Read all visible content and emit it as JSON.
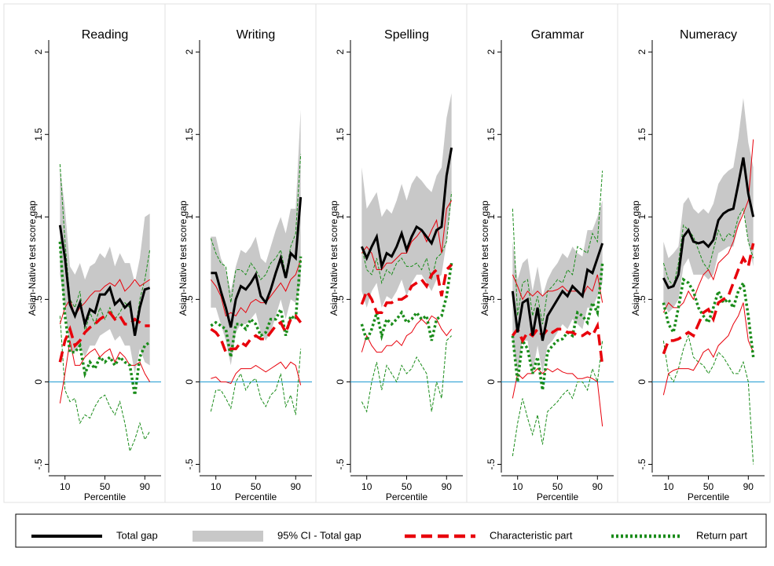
{
  "legend": [
    {
      "name": "Total gap",
      "color": "#000000",
      "width": 3,
      "dash": "none"
    },
    {
      "name": "95% CI - Total gap",
      "color": "#c8c8c8",
      "width": 0,
      "dash": "none"
    },
    {
      "name": "Characteristic part",
      "color": "#e8000b",
      "width": 3.5,
      "dash": "14 7"
    },
    {
      "name": "Return part",
      "color": "#1a8c1a",
      "width": 3.5,
      "dash": "3 3"
    }
  ],
  "chart_data": [
    {
      "type": "line",
      "title": "Reading",
      "ylabel": "Asian-Native test score gap",
      "xlabel": "Percentile",
      "x": [
        5,
        10,
        15,
        20,
        25,
        30,
        35,
        40,
        45,
        50,
        55,
        60,
        65,
        70,
        75,
        80,
        85,
        90,
        95
      ],
      "xlim": [
        0,
        100
      ],
      "xticks": [
        10,
        50,
        90
      ],
      "ylim": [
        -0.55,
        2.12
      ],
      "yticks": [
        {
          "value": -0.5,
          "label": "-.5"
        },
        0,
        {
          "value": 0.5,
          "label": ".5"
        },
        1,
        1.5,
        2
      ],
      "refline": 0,
      "total": {
        "values": [
          0.95,
          0.75,
          0.47,
          0.4,
          0.48,
          0.35,
          0.44,
          0.42,
          0.53,
          0.53,
          0.57,
          0.47,
          0.5,
          0.45,
          0.48,
          0.28,
          0.45,
          0.56,
          0.57
        ],
        "lower": [
          0.65,
          0.45,
          0.2,
          0.18,
          0.22,
          0.15,
          0.22,
          0.22,
          0.28,
          0.3,
          0.32,
          0.25,
          0.28,
          0.22,
          0.22,
          0.05,
          0.2,
          0.12,
          0.1
        ],
        "upper": [
          1.3,
          1.05,
          0.7,
          0.65,
          0.72,
          0.62,
          0.7,
          0.72,
          0.78,
          0.75,
          0.82,
          0.7,
          0.78,
          0.72,
          0.72,
          0.6,
          0.75,
          1.0,
          1.02
        ]
      },
      "characteristic": {
        "values": [
          0.12,
          0.25,
          0.32,
          0.22,
          0.25,
          0.3,
          0.33,
          0.35,
          0.38,
          0.4,
          0.42,
          0.38,
          0.4,
          0.35,
          0.35,
          0.38,
          0.36,
          0.34,
          0.34
        ],
        "lower": [
          -0.13,
          0.05,
          0.25,
          0.1,
          0.1,
          0.15,
          0.18,
          0.2,
          0.15,
          0.18,
          0.2,
          0.12,
          0.18,
          0.15,
          0.1,
          0.1,
          0.12,
          0.05,
          0.0
        ],
        "upper": [
          0.35,
          0.45,
          0.5,
          0.4,
          0.45,
          0.48,
          0.52,
          0.55,
          0.55,
          0.58,
          0.6,
          0.58,
          0.62,
          0.55,
          0.58,
          0.62,
          0.58,
          0.6,
          0.62
        ]
      },
      "return": {
        "values": [
          0.85,
          0.4,
          0.18,
          0.18,
          0.22,
          0.05,
          0.12,
          0.08,
          0.15,
          0.12,
          0.15,
          0.1,
          0.15,
          0.12,
          0.1,
          -0.08,
          0.15,
          0.22,
          0.24
        ],
        "lower": [
          0.4,
          -0.05,
          -0.12,
          -0.1,
          -0.25,
          -0.2,
          -0.22,
          -0.15,
          -0.1,
          -0.08,
          -0.15,
          -0.2,
          -0.12,
          -0.25,
          -0.42,
          -0.35,
          -0.25,
          -0.35,
          -0.3
        ],
        "upper": [
          1.32,
          0.85,
          0.5,
          0.45,
          0.55,
          0.3,
          0.42,
          0.35,
          0.45,
          0.38,
          0.45,
          0.38,
          0.42,
          0.48,
          0.45,
          0.3,
          0.5,
          0.62,
          0.8
        ]
      }
    },
    {
      "type": "line",
      "title": "Writing",
      "ylabel": "Asian-Native test score gap",
      "xlabel": "Percentile",
      "x": [
        5,
        10,
        15,
        20,
        25,
        30,
        35,
        40,
        45,
        50,
        55,
        60,
        65,
        70,
        75,
        80,
        85,
        90,
        95
      ],
      "xlim": [
        0,
        100
      ],
      "xticks": [
        10,
        50,
        90
      ],
      "ylim": [
        -0.55,
        2.12
      ],
      "yticks": [
        {
          "value": -0.5,
          "label": "-.5"
        },
        0,
        {
          "value": 0.5,
          "label": ".5"
        },
        1,
        1.5,
        2
      ],
      "refline": 0,
      "total": {
        "values": [
          0.66,
          0.66,
          0.55,
          0.45,
          0.33,
          0.5,
          0.58,
          0.56,
          0.6,
          0.65,
          0.52,
          0.48,
          0.56,
          0.66,
          0.75,
          0.63,
          0.78,
          0.75,
          1.12
        ],
        "lower": [
          0.45,
          0.45,
          0.35,
          0.25,
          0.1,
          0.3,
          0.35,
          0.35,
          0.38,
          0.42,
          0.3,
          0.25,
          0.3,
          0.4,
          0.5,
          0.38,
          0.5,
          0.48,
          0.6
        ],
        "upper": [
          0.88,
          0.88,
          0.75,
          0.68,
          0.55,
          0.7,
          0.8,
          0.78,
          0.82,
          0.88,
          0.75,
          0.72,
          0.82,
          0.92,
          1.0,
          0.9,
          1.05,
          1.05,
          1.65
        ]
      },
      "characteristic": {
        "values": [
          0.32,
          0.3,
          0.26,
          0.18,
          0.2,
          0.2,
          0.24,
          0.22,
          0.26,
          0.28,
          0.26,
          0.26,
          0.3,
          0.34,
          0.36,
          0.3,
          0.38,
          0.4,
          0.36
        ],
        "lower": [
          0.02,
          0.03,
          0.0,
          0.0,
          -0.01,
          0.05,
          0.08,
          0.08,
          0.08,
          0.1,
          0.08,
          0.06,
          0.08,
          0.1,
          0.12,
          0.08,
          0.12,
          0.1,
          -0.02
        ],
        "upper": [
          0.62,
          0.58,
          0.52,
          0.4,
          0.42,
          0.4,
          0.45,
          0.42,
          0.48,
          0.5,
          0.48,
          0.48,
          0.52,
          0.56,
          0.6,
          0.55,
          0.62,
          0.65,
          0.74
        ]
      },
      "return": {
        "values": [
          0.34,
          0.36,
          0.34,
          0.32,
          0.15,
          0.35,
          0.35,
          0.32,
          0.38,
          0.35,
          0.28,
          0.3,
          0.38,
          0.38,
          0.44,
          0.28,
          0.4,
          0.38,
          0.76
        ],
        "lower": [
          -0.18,
          -0.05,
          -0.05,
          -0.1,
          -0.16,
          0.0,
          0.05,
          -0.05,
          0.0,
          0.02,
          -0.1,
          -0.15,
          -0.08,
          -0.05,
          0.05,
          -0.15,
          -0.08,
          -0.2,
          0.2
        ],
        "upper": [
          0.87,
          0.78,
          0.72,
          0.7,
          0.48,
          0.68,
          0.68,
          0.65,
          0.72,
          0.68,
          0.62,
          0.65,
          0.72,
          0.75,
          0.8,
          0.65,
          0.82,
          0.9,
          1.38
        ]
      }
    },
    {
      "type": "line",
      "title": "Spelling",
      "ylabel": "Asian-Native test score gap",
      "xlabel": "Percentile",
      "x": [
        5,
        10,
        15,
        20,
        25,
        30,
        35,
        40,
        45,
        50,
        55,
        60,
        65,
        70,
        75,
        80,
        85,
        90,
        95
      ],
      "xlim": [
        0,
        100
      ],
      "xticks": [
        10,
        50,
        90
      ],
      "ylim": [
        -0.55,
        2.12
      ],
      "yticks": [
        {
          "value": -0.5,
          "label": "-.5"
        },
        0,
        {
          "value": 0.5,
          "label": ".5"
        },
        1,
        1.5,
        2
      ],
      "refline": 0,
      "total": {
        "values": [
          0.82,
          0.75,
          0.82,
          0.88,
          0.7,
          0.78,
          0.76,
          0.82,
          0.9,
          0.8,
          0.88,
          0.94,
          0.92,
          0.88,
          0.84,
          0.92,
          0.94,
          1.25,
          1.42
        ],
        "lower": [
          0.55,
          0.45,
          0.55,
          0.6,
          0.45,
          0.52,
          0.5,
          0.55,
          0.62,
          0.52,
          0.6,
          0.65,
          0.65,
          0.6,
          0.55,
          0.62,
          0.65,
          0.85,
          1.1
        ],
        "upper": [
          1.3,
          1.05,
          1.1,
          1.15,
          1.0,
          1.05,
          1.02,
          1.1,
          1.2,
          1.1,
          1.2,
          1.25,
          1.22,
          1.18,
          1.15,
          1.25,
          1.3,
          1.6,
          1.75
        ]
      },
      "characteristic": {
        "values": [
          0.47,
          0.55,
          0.5,
          0.42,
          0.42,
          0.48,
          0.48,
          0.5,
          0.5,
          0.52,
          0.58,
          0.6,
          0.62,
          0.58,
          0.65,
          0.68,
          0.52,
          0.68,
          0.71
        ],
        "lower": [
          0.18,
          0.28,
          0.22,
          0.18,
          0.18,
          0.22,
          0.22,
          0.25,
          0.22,
          0.28,
          0.3,
          0.35,
          0.38,
          0.35,
          0.4,
          0.38,
          0.32,
          0.28,
          0.32
        ],
        "upper": [
          0.78,
          0.82,
          0.78,
          0.68,
          0.68,
          0.72,
          0.72,
          0.75,
          0.78,
          0.78,
          0.85,
          0.88,
          0.92,
          0.85,
          0.92,
          0.98,
          0.78,
          1.05,
          1.1
        ]
      },
      "return": {
        "values": [
          0.35,
          0.25,
          0.32,
          0.42,
          0.28,
          0.38,
          0.35,
          0.38,
          0.42,
          0.36,
          0.38,
          0.42,
          0.38,
          0.4,
          0.25,
          0.38,
          0.4,
          0.52,
          0.72
        ],
        "lower": [
          -0.12,
          -0.18,
          0.0,
          0.12,
          -0.05,
          0.1,
          0.05,
          0.0,
          0.1,
          0.05,
          0.08,
          0.15,
          0.1,
          0.05,
          -0.18,
          0.0,
          -0.1,
          0.25,
          0.28
        ],
        "upper": [
          0.82,
          0.68,
          0.65,
          0.75,
          0.6,
          0.68,
          0.65,
          0.72,
          0.75,
          0.7,
          0.7,
          0.72,
          0.68,
          0.75,
          0.62,
          0.75,
          0.78,
          0.85,
          1.15
        ]
      }
    },
    {
      "type": "line",
      "title": "Grammar",
      "ylabel": "Asian-Native test score gap",
      "xlabel": "Percentile",
      "x": [
        5,
        10,
        15,
        20,
        25,
        30,
        35,
        40,
        45,
        50,
        55,
        60,
        65,
        70,
        75,
        80,
        85,
        90,
        95
      ],
      "xlim": [
        0,
        100
      ],
      "xticks": [
        10,
        50,
        90
      ],
      "ylim": [
        -0.55,
        2.12
      ],
      "yticks": [
        {
          "value": -0.5,
          "label": "-.5"
        },
        0,
        {
          "value": 0.5,
          "label": ".5"
        },
        1,
        1.5,
        2
      ],
      "refline": 0,
      "total": {
        "values": [
          0.55,
          0.3,
          0.48,
          0.5,
          0.28,
          0.45,
          0.25,
          0.4,
          0.45,
          0.5,
          0.55,
          0.52,
          0.58,
          0.55,
          0.52,
          0.68,
          0.66,
          0.75,
          0.84
        ],
        "lower": [
          0.25,
          0.05,
          0.25,
          0.25,
          0.05,
          0.22,
          0.05,
          0.22,
          0.25,
          0.3,
          0.35,
          0.32,
          0.38,
          0.35,
          0.32,
          0.45,
          0.45,
          0.52,
          0.6
        ],
        "upper": [
          0.85,
          0.62,
          0.72,
          0.75,
          0.55,
          0.7,
          0.52,
          0.62,
          0.68,
          0.72,
          0.78,
          0.75,
          0.82,
          0.78,
          0.76,
          0.92,
          0.92,
          1.0,
          1.1
        ]
      },
      "characteristic": {
        "values": [
          0.28,
          0.32,
          0.25,
          0.3,
          0.28,
          0.32,
          0.28,
          0.32,
          0.3,
          0.32,
          0.32,
          0.3,
          0.3,
          0.28,
          0.28,
          0.3,
          0.28,
          0.34,
          0.1
        ],
        "lower": [
          -0.1,
          0.05,
          0.02,
          0.05,
          0.05,
          0.08,
          0.05,
          0.08,
          0.06,
          0.08,
          0.06,
          0.05,
          0.05,
          0.02,
          0.02,
          0.03,
          0.02,
          0.0,
          -0.27
        ],
        "upper": [
          0.65,
          0.58,
          0.5,
          0.55,
          0.52,
          0.55,
          0.52,
          0.55,
          0.55,
          0.56,
          0.58,
          0.55,
          0.55,
          0.55,
          0.52,
          0.58,
          0.55,
          0.65,
          0.48
        ]
      },
      "return": {
        "values": [
          0.28,
          0.0,
          0.25,
          0.2,
          0.05,
          0.15,
          -0.05,
          0.18,
          0.22,
          0.25,
          0.26,
          0.3,
          0.28,
          0.42,
          0.4,
          0.36,
          0.48,
          0.42,
          0.72
        ],
        "lower": [
          -0.45,
          -0.25,
          -0.1,
          -0.22,
          -0.32,
          -0.2,
          -0.38,
          -0.18,
          -0.15,
          -0.12,
          -0.08,
          -0.05,
          -0.1,
          0.0,
          0.0,
          -0.05,
          0.08,
          0.0,
          0.25
        ],
        "upper": [
          1.05,
          0.4,
          0.6,
          0.62,
          0.4,
          0.52,
          0.35,
          0.55,
          0.58,
          0.62,
          0.6,
          0.68,
          0.65,
          0.82,
          0.8,
          0.78,
          0.9,
          0.85,
          1.28
        ]
      }
    },
    {
      "type": "line",
      "title": "Numeracy",
      "ylabel": "Asian-Native test score gap",
      "xlabel": "Percentile",
      "x": [
        5,
        10,
        15,
        20,
        25,
        30,
        35,
        40,
        45,
        50,
        55,
        60,
        65,
        70,
        75,
        80,
        85,
        90,
        95
      ],
      "xlim": [
        0,
        100
      ],
      "xticks": [
        10,
        50,
        90
      ],
      "ylim": [
        -0.55,
        2.12
      ],
      "yticks": [
        {
          "value": -0.5,
          "label": "-.5"
        },
        0,
        {
          "value": 0.5,
          "label": ".5"
        },
        1,
        1.5,
        2
      ],
      "refline": 0,
      "total": {
        "values": [
          0.63,
          0.57,
          0.58,
          0.65,
          0.88,
          0.92,
          0.85,
          0.84,
          0.85,
          0.82,
          0.86,
          0.98,
          1.02,
          1.04,
          1.05,
          1.2,
          1.36,
          1.14,
          1.0
        ],
        "lower": [
          0.48,
          0.42,
          0.45,
          0.5,
          0.7,
          0.75,
          0.65,
          0.65,
          0.65,
          0.62,
          0.65,
          0.78,
          0.8,
          0.82,
          0.82,
          0.95,
          1.05,
          0.85,
          0.7
        ],
        "upper": [
          0.85,
          0.75,
          0.78,
          0.82,
          1.08,
          1.12,
          1.05,
          1.02,
          1.05,
          1.02,
          1.08,
          1.2,
          1.25,
          1.28,
          1.3,
          1.48,
          1.72,
          1.45,
          1.3
        ]
      },
      "characteristic": {
        "values": [
          0.17,
          0.25,
          0.25,
          0.26,
          0.28,
          0.3,
          0.28,
          0.35,
          0.42,
          0.44,
          0.38,
          0.48,
          0.5,
          0.52,
          0.6,
          0.68,
          0.75,
          0.7,
          0.84
        ],
        "lower": [
          -0.08,
          0.05,
          0.07,
          0.08,
          0.08,
          0.08,
          0.07,
          0.12,
          0.18,
          0.2,
          0.15,
          0.22,
          0.25,
          0.28,
          0.35,
          0.4,
          0.48,
          0.25,
          0.18
        ],
        "upper": [
          0.42,
          0.48,
          0.45,
          0.45,
          0.48,
          0.55,
          0.5,
          0.58,
          0.65,
          0.68,
          0.62,
          0.72,
          0.75,
          0.78,
          0.85,
          0.95,
          1.02,
          1.1,
          1.47
        ]
      },
      "return": {
        "values": [
          0.48,
          0.35,
          0.3,
          0.45,
          0.62,
          0.6,
          0.55,
          0.45,
          0.4,
          0.36,
          0.45,
          0.55,
          0.48,
          0.5,
          0.45,
          0.55,
          0.6,
          0.4,
          0.15
        ],
        "lower": [
          0.25,
          0.05,
          0.0,
          0.08,
          0.2,
          0.28,
          0.15,
          0.12,
          0.1,
          0.05,
          0.1,
          0.18,
          0.15,
          0.1,
          0.05,
          0.05,
          0.12,
          0.0,
          -0.5
        ],
        "upper": [
          0.72,
          0.62,
          0.58,
          0.72,
          0.95,
          0.92,
          0.88,
          0.8,
          0.72,
          0.68,
          0.8,
          0.92,
          0.85,
          0.9,
          0.88,
          1.0,
          1.05,
          0.85,
          0.75
        ]
      }
    }
  ]
}
